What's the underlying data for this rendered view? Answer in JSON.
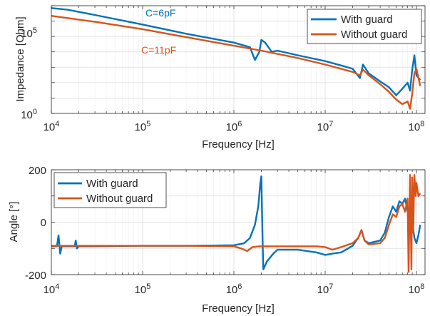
{
  "chart_data": [
    {
      "type": "line",
      "xscale": "log",
      "yscale": "log",
      "xlim": [
        10000,
        110000000
      ],
      "ylim": [
        1,
        10000000
      ],
      "xlabel": "Frequency [Hz]",
      "ylabel": "Impedance [Ohm]",
      "xticks": [
        10000,
        100000,
        1000000,
        10000000,
        100000000
      ],
      "xtick_labels": [
        {
          "base": "10",
          "exp": "4"
        },
        {
          "base": "10",
          "exp": "5"
        },
        {
          "base": "10",
          "exp": "6"
        },
        {
          "base": "10",
          "exp": "7"
        },
        {
          "base": "10",
          "exp": "8"
        }
      ],
      "yticks": [
        1,
        100000
      ],
      "ytick_labels": [
        {
          "base": "10",
          "exp": "0"
        },
        {
          "base": "10",
          "exp": "5"
        }
      ],
      "grid": true,
      "legend_position": "top-right",
      "legend": [
        "With guard",
        "Without guard"
      ],
      "annotations": [
        {
          "text": "C=6pF",
          "series": "With guard",
          "x": 250000,
          "y": 800000
        },
        {
          "text": "C=11pF",
          "series": "Without guard",
          "x": 600000,
          "y": 800
        }
      ],
      "series": [
        {
          "name": "With guard",
          "color": "#0072BD",
          "x": [
            10000,
            15000,
            30000,
            100000,
            300000,
            1000000,
            1500000,
            1700000,
            1900000,
            2000000,
            2200000,
            2600000,
            3000000,
            5000000,
            10000000,
            15000000,
            20000000,
            24000000,
            26000000,
            30000000,
            40000000,
            50000000,
            60000000,
            70000000,
            80000000,
            85000000,
            90000000,
            95000000,
            100000000,
            110000000
          ],
          "y": [
            7000000,
            5500000,
            2500000,
            600000,
            150000,
            40000,
            20000,
            3000,
            10000,
            60000,
            40000,
            10000,
            12000,
            6000,
            2500,
            1300,
            800,
            200,
            1500,
            400,
            120,
            50,
            15,
            40,
            100,
            30,
            700,
            6000,
            300,
            150
          ]
        },
        {
          "name": "Without guard",
          "color": "#D95319",
          "x": [
            10000,
            30000,
            100000,
            300000,
            1000000,
            2000000,
            5000000,
            10000000,
            20000000,
            24000000,
            26000000,
            30000000,
            40000000,
            50000000,
            60000000,
            70000000,
            80000000,
            85000000,
            90000000,
            95000000,
            100000000,
            110000000
          ],
          "y": [
            2200000,
            900000,
            300000,
            90000,
            25000,
            12000,
            4000,
            1500,
            500,
            300,
            700,
            300,
            80,
            25,
            8,
            4,
            6,
            2,
            20,
            400,
            800,
            60
          ]
        }
      ]
    },
    {
      "type": "line",
      "xscale": "log",
      "xlim": [
        10000,
        110000000
      ],
      "ylim": [
        -200,
        200
      ],
      "xlabel": "Frequency [Hz]",
      "ylabel": "Angle [°]",
      "xticks": [
        10000,
        100000,
        1000000,
        10000000,
        100000000
      ],
      "xtick_labels": [
        {
          "base": "10",
          "exp": "4"
        },
        {
          "base": "10",
          "exp": "5"
        },
        {
          "base": "10",
          "exp": "6"
        },
        {
          "base": "10",
          "exp": "7"
        },
        {
          "base": "10",
          "exp": "8"
        }
      ],
      "yticks": [
        -200,
        0,
        200
      ],
      "ytick_labels": [
        "-200",
        "0",
        "200"
      ],
      "grid": true,
      "legend_position": "top-left",
      "legend": [
        "With guard",
        "Without guard"
      ],
      "series": [
        {
          "name": "With guard",
          "color": "#0072BD",
          "x": [
            10000,
            11500,
            12000,
            12500,
            13000,
            15000,
            18000,
            18500,
            19000,
            20000,
            30000,
            100000,
            300000,
            1000000,
            1300000,
            1500000,
            1700000,
            1850000,
            1950000,
            2000000,
            2050000,
            2100000,
            2300000,
            2700000,
            3000000,
            5000000,
            8000000,
            10000000,
            12000000,
            15000000,
            20000000,
            23000000,
            25000000,
            27000000,
            30000000,
            40000000,
            45000000,
            50000000,
            55000000,
            60000000,
            65000000,
            70000000,
            75000000,
            80000000,
            85000000,
            90000000,
            95000000,
            100000000,
            105000000,
            110000000
          ],
          "y": [
            -92,
            -92,
            -50,
            -120,
            -92,
            -92,
            -92,
            -70,
            -100,
            -92,
            -92,
            -90,
            -90,
            -88,
            -80,
            -60,
            -10,
            60,
            150,
            175,
            -20,
            -180,
            -150,
            -120,
            -105,
            -105,
            -115,
            -125,
            -120,
            -115,
            -90,
            -60,
            -30,
            -70,
            -80,
            -70,
            -40,
            20,
            60,
            40,
            80,
            70,
            90,
            40,
            60,
            0,
            -60,
            -80,
            -50,
            -10
          ]
        },
        {
          "name": "Without guard",
          "color": "#D95319",
          "x": [
            10000,
            30000,
            100000,
            300000,
            1000000,
            1200000,
            1400000,
            1600000,
            1900000,
            2000000,
            3000000,
            5000000,
            8000000,
            10000000,
            12000000,
            15000000,
            20000000,
            23000000,
            25000000,
            27000000,
            30000000,
            40000000,
            45000000,
            50000000,
            55000000,
            60000000,
            65000000,
            70000000,
            75000000,
            80000000,
            82000000,
            85000000,
            88000000,
            90000000,
            92000000,
            95000000,
            98000000,
            100000000,
            105000000,
            110000000
          ],
          "y": [
            -90,
            -90,
            -90,
            -90,
            -92,
            -100,
            -110,
            -95,
            -92,
            -92,
            -92,
            -92,
            -92,
            -95,
            -105,
            -95,
            -80,
            -60,
            -30,
            -70,
            -85,
            -80,
            -60,
            -10,
            30,
            20,
            60,
            70,
            40,
            90,
            -190,
            180,
            -180,
            170,
            -40,
            180,
            100,
            150,
            100,
            110
          ]
        }
      ]
    }
  ]
}
